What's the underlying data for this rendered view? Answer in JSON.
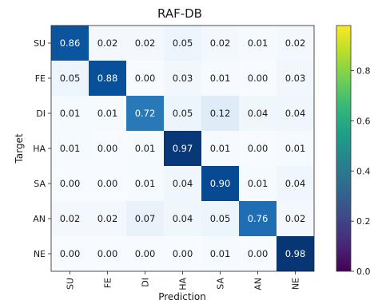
{
  "chart_data": {
    "type": "heatmap",
    "title": "RAF-DB",
    "xlabel": "Prediction",
    "ylabel": "Target",
    "x_categories": [
      "SU",
      "FE",
      "DI",
      "HA",
      "SA",
      "AN",
      "NE"
    ],
    "y_categories": [
      "SU",
      "FE",
      "DI",
      "HA",
      "SA",
      "AN",
      "NE"
    ],
    "values": [
      [
        0.86,
        0.02,
        0.02,
        0.05,
        0.02,
        0.01,
        0.02
      ],
      [
        0.05,
        0.88,
        0.0,
        0.03,
        0.01,
        0.0,
        0.03
      ],
      [
        0.01,
        0.01,
        0.72,
        0.05,
        0.12,
        0.04,
        0.04
      ],
      [
        0.01,
        0.0,
        0.01,
        0.97,
        0.01,
        0.0,
        0.01
      ],
      [
        0.0,
        0.0,
        0.01,
        0.04,
        0.9,
        0.01,
        0.04
      ],
      [
        0.02,
        0.02,
        0.07,
        0.04,
        0.05,
        0.76,
        0.02
      ],
      [
        0.0,
        0.0,
        0.0,
        0.0,
        0.01,
        0.0,
        0.98
      ]
    ],
    "cell_colormap": "Blues",
    "cell_value_range": [
      0,
      1
    ],
    "colorbar": {
      "colormap": "viridis",
      "range": [
        0,
        0.98
      ],
      "ticks": [
        0.0,
        0.2,
        0.4,
        0.6,
        0.8
      ],
      "tick_labels": [
        "0.0",
        "0.2",
        "0.4",
        "0.6",
        "0.8"
      ]
    },
    "grid": false,
    "legend": "none"
  }
}
